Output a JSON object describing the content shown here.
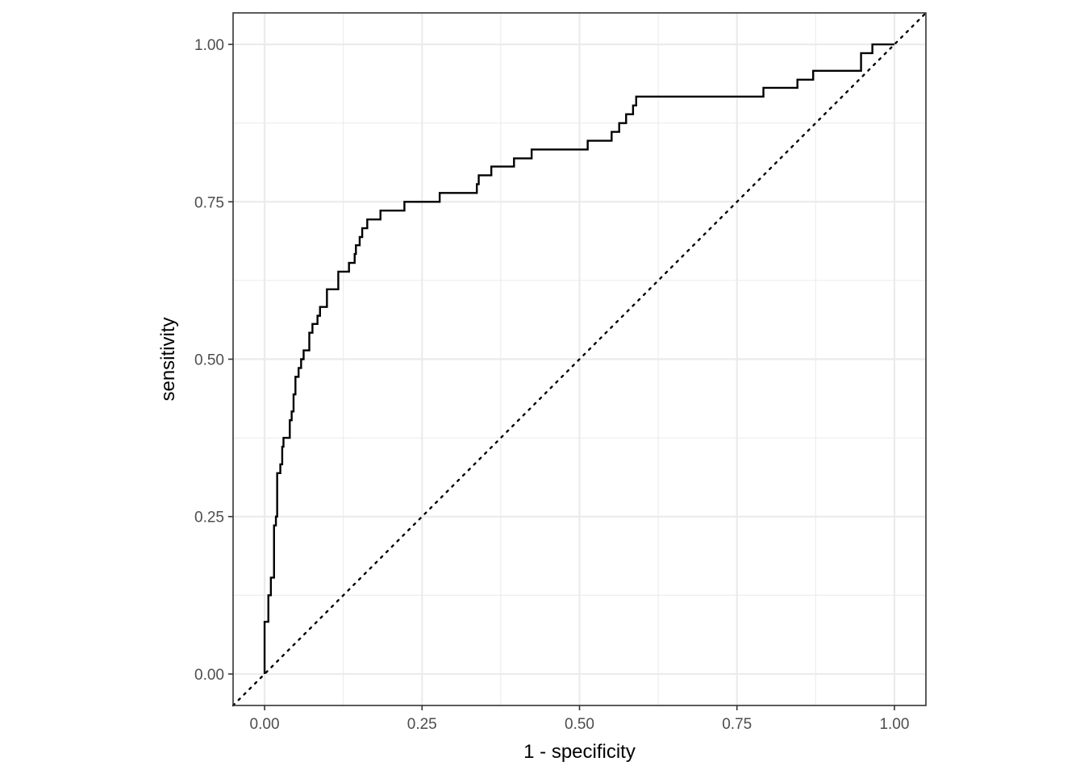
{
  "chart_data": {
    "type": "line",
    "title": "",
    "xlabel": "1 - specificity",
    "ylabel": "sensitivity",
    "xlim": [
      -0.05,
      1.05
    ],
    "ylim": [
      -0.05,
      1.05
    ],
    "x_ticks": [
      0,
      0.25,
      0.5,
      0.75,
      1
    ],
    "x_tick_labels": [
      "0.00",
      "0.25",
      "0.50",
      "0.75",
      "1.00"
    ],
    "y_ticks": [
      0,
      0.25,
      0.5,
      0.75,
      1
    ],
    "y_tick_labels": [
      "0.00",
      "0.25",
      "0.50",
      "0.75",
      "1.00"
    ],
    "grid": true,
    "legend": "none",
    "colors": {
      "curve": "#000000",
      "reference": "#000000",
      "grid": "#ebebeb",
      "panel_border": "#333333"
    },
    "series": [
      {
        "style": "step",
        "points": [
          [
            0.0,
            0.0
          ],
          [
            0.0,
            0.083
          ],
          [
            0.006,
            0.083
          ],
          [
            0.006,
            0.125
          ],
          [
            0.01,
            0.125
          ],
          [
            0.01,
            0.153
          ],
          [
            0.015,
            0.153
          ],
          [
            0.015,
            0.236
          ],
          [
            0.018,
            0.236
          ],
          [
            0.018,
            0.25
          ],
          [
            0.02,
            0.25
          ],
          [
            0.02,
            0.319
          ],
          [
            0.025,
            0.319
          ],
          [
            0.025,
            0.333
          ],
          [
            0.028,
            0.333
          ],
          [
            0.028,
            0.361
          ],
          [
            0.03,
            0.361
          ],
          [
            0.03,
            0.375
          ],
          [
            0.04,
            0.375
          ],
          [
            0.04,
            0.403
          ],
          [
            0.043,
            0.403
          ],
          [
            0.043,
            0.417
          ],
          [
            0.046,
            0.417
          ],
          [
            0.046,
            0.444
          ],
          [
            0.049,
            0.444
          ],
          [
            0.049,
            0.472
          ],
          [
            0.054,
            0.472
          ],
          [
            0.054,
            0.486
          ],
          [
            0.058,
            0.486
          ],
          [
            0.058,
            0.5
          ],
          [
            0.062,
            0.5
          ],
          [
            0.062,
            0.514
          ],
          [
            0.071,
            0.514
          ],
          [
            0.071,
            0.542
          ],
          [
            0.076,
            0.542
          ],
          [
            0.076,
            0.556
          ],
          [
            0.084,
            0.556
          ],
          [
            0.084,
            0.569
          ],
          [
            0.088,
            0.569
          ],
          [
            0.088,
            0.583
          ],
          [
            0.099,
            0.583
          ],
          [
            0.099,
            0.611
          ],
          [
            0.117,
            0.611
          ],
          [
            0.117,
            0.639
          ],
          [
            0.134,
            0.639
          ],
          [
            0.134,
            0.653
          ],
          [
            0.143,
            0.653
          ],
          [
            0.143,
            0.667
          ],
          [
            0.145,
            0.667
          ],
          [
            0.145,
            0.681
          ],
          [
            0.151,
            0.681
          ],
          [
            0.151,
            0.694
          ],
          [
            0.155,
            0.694
          ],
          [
            0.155,
            0.708
          ],
          [
            0.163,
            0.708
          ],
          [
            0.163,
            0.722
          ],
          [
            0.184,
            0.722
          ],
          [
            0.184,
            0.736
          ],
          [
            0.222,
            0.736
          ],
          [
            0.222,
            0.75
          ],
          [
            0.278,
            0.75
          ],
          [
            0.278,
            0.764
          ],
          [
            0.337,
            0.764
          ],
          [
            0.337,
            0.778
          ],
          [
            0.34,
            0.778
          ],
          [
            0.34,
            0.792
          ],
          [
            0.36,
            0.792
          ],
          [
            0.36,
            0.806
          ],
          [
            0.396,
            0.806
          ],
          [
            0.396,
            0.819
          ],
          [
            0.424,
            0.819
          ],
          [
            0.424,
            0.833
          ],
          [
            0.513,
            0.833
          ],
          [
            0.513,
            0.847
          ],
          [
            0.551,
            0.847
          ],
          [
            0.551,
            0.861
          ],
          [
            0.563,
            0.861
          ],
          [
            0.563,
            0.875
          ],
          [
            0.574,
            0.875
          ],
          [
            0.574,
            0.889
          ],
          [
            0.585,
            0.889
          ],
          [
            0.585,
            0.903
          ],
          [
            0.59,
            0.903
          ],
          [
            0.59,
            0.917
          ],
          [
            0.792,
            0.917
          ],
          [
            0.792,
            0.931
          ],
          [
            0.846,
            0.931
          ],
          [
            0.846,
            0.944
          ],
          [
            0.871,
            0.944
          ],
          [
            0.871,
            0.958
          ],
          [
            0.947,
            0.958
          ],
          [
            0.947,
            0.986
          ],
          [
            0.965,
            0.986
          ],
          [
            0.965,
            1.0
          ],
          [
            1.0,
            1.0
          ]
        ]
      },
      {
        "style": "dotted-diagonal",
        "points": [
          [
            -0.05,
            -0.05
          ],
          [
            1.05,
            1.05
          ]
        ]
      }
    ]
  }
}
